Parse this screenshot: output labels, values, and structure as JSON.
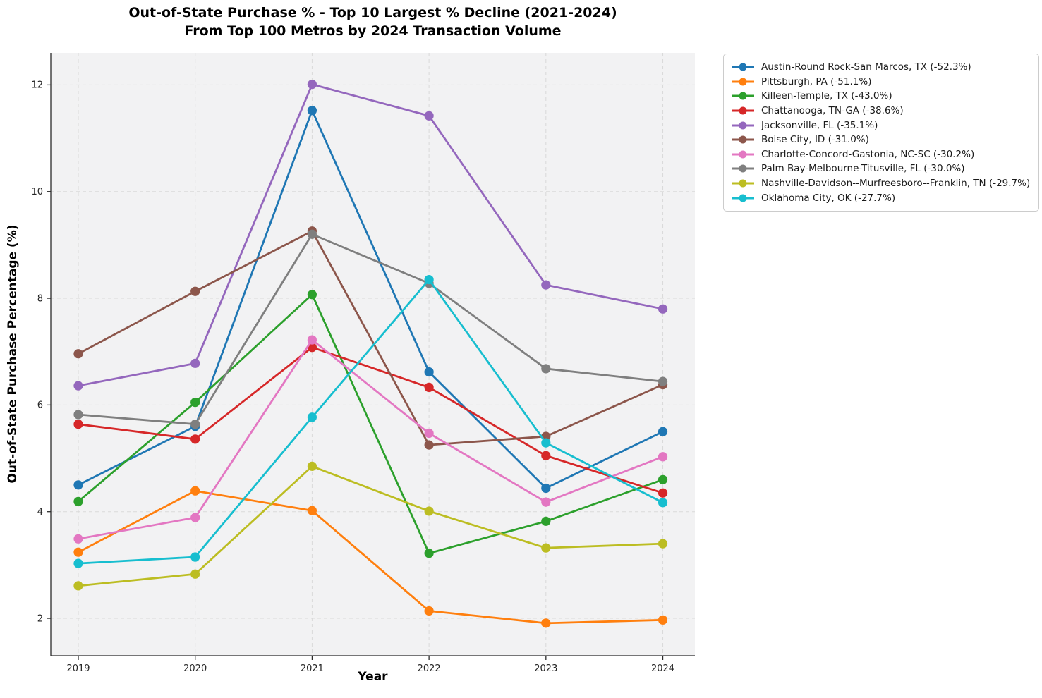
{
  "title": {
    "line1": "Out-of-State Purchase % - Top 10 Largest % Decline (2021-2024)",
    "line2": "From Top 100 Metros by 2024 Transaction Volume"
  },
  "axes": {
    "xlabel": "Year",
    "ylabel": "Out-of-State Purchase Percentage (%)"
  },
  "colors": {
    "figure_bg": "#ffffff",
    "plot_bg": "#f2f2f3",
    "grid": "#d9d9d9",
    "spine": "#2b2b2b",
    "tick_text": "#262626"
  },
  "chart_data": {
    "type": "line",
    "title": "Out-of-State Purchase % - Top 10 Largest % Decline (2021-2024)\nFrom Top 100 Metros by 2024 Transaction Volume",
    "xlabel": "Year",
    "ylabel": "Out-of-State Purchase Percentage (%)",
    "x": [
      2019,
      2020,
      2021,
      2022,
      2023,
      2024
    ],
    "xtick_labels": [
      "2019",
      "2020",
      "2021",
      "2022",
      "2023",
      "2024"
    ],
    "yticks": [
      2,
      4,
      6,
      8,
      10,
      12
    ],
    "ylim": [
      1.3,
      12.6
    ],
    "grid": true,
    "grid_style": "dashed",
    "legend_position": "outside-top-right",
    "marker": "circle",
    "series": [
      {
        "name": "Austin-Round Rock-San Marcos, TX (-52.3%)",
        "color": "#1f77b4",
        "values": [
          4.5,
          5.6,
          11.52,
          6.62,
          4.44,
          5.5
        ]
      },
      {
        "name": "Pittsburgh, PA (-51.1%)",
        "color": "#ff7f0e",
        "values": [
          3.24,
          4.39,
          4.02,
          2.14,
          1.91,
          1.97
        ]
      },
      {
        "name": "Killeen-Temple, TX (-43.0%)",
        "color": "#2ca02c",
        "values": [
          4.19,
          6.05,
          8.07,
          3.22,
          3.82,
          4.6
        ]
      },
      {
        "name": "Chattanooga, TN-GA (-38.6%)",
        "color": "#d62728",
        "values": [
          5.64,
          5.36,
          7.08,
          6.33,
          5.05,
          4.35
        ]
      },
      {
        "name": "Jacksonville, FL (-35.1%)",
        "color": "#9467bd",
        "values": [
          6.36,
          6.78,
          12.01,
          11.42,
          8.25,
          7.8
        ]
      },
      {
        "name": "Boise City, ID (-31.0%)",
        "color": "#8c564b",
        "values": [
          6.96,
          8.13,
          9.26,
          5.25,
          5.41,
          6.38
        ]
      },
      {
        "name": "Charlotte-Concord-Gastonia, NC-SC (-30.2%)",
        "color": "#e377c2",
        "values": [
          3.49,
          3.89,
          7.22,
          5.47,
          4.18,
          5.03
        ]
      },
      {
        "name": "Palm Bay-Melbourne-Titusville, FL (-30.0%)",
        "color": "#7f7f7f",
        "values": [
          5.82,
          5.64,
          9.2,
          8.28,
          6.68,
          6.44
        ]
      },
      {
        "name": "Nashville-Davidson--Murfreesboro--Franklin, TN (-29.7%)",
        "color": "#bcbd22",
        "values": [
          2.61,
          2.83,
          4.85,
          4.01,
          3.32,
          3.4
        ]
      },
      {
        "name": "Oklahoma City, OK (-27.7%)",
        "color": "#17becf",
        "values": [
          3.03,
          3.15,
          5.77,
          8.35,
          5.29,
          4.17
        ]
      }
    ]
  }
}
